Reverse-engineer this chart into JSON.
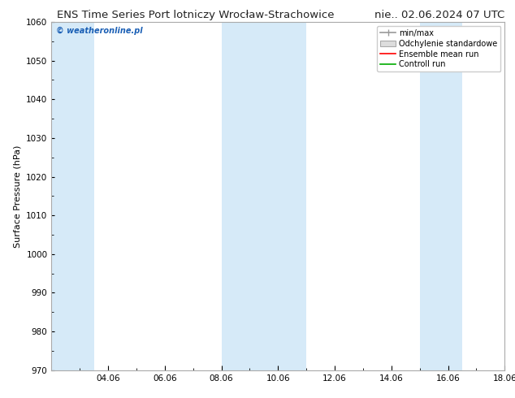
{
  "title_left": "ENS Time Series Port lotniczy Wrocław-Strachowice",
  "title_right": "nie.. 02.06.2024 07 UTC",
  "ylabel": "Surface Pressure (hPa)",
  "watermark": "© weatheronline.pl",
  "ylim": [
    970,
    1060
  ],
  "yticks": [
    970,
    980,
    990,
    1000,
    1010,
    1020,
    1030,
    1040,
    1050,
    1060
  ],
  "xlim": [
    0,
    16
  ],
  "xtick_labels": [
    "04.06",
    "06.06",
    "08.06",
    "10.06",
    "12.06",
    "14.06",
    "16.06",
    "18.06"
  ],
  "xtick_positions": [
    2,
    4,
    6,
    8,
    10,
    12,
    14,
    16
  ],
  "shaded_bands": [
    {
      "x_start": 0.0,
      "x_end": 1.5,
      "color": "#d6eaf8"
    },
    {
      "x_start": 6.0,
      "x_end": 8.0,
      "color": "#d6eaf8"
    },
    {
      "x_start": 8.0,
      "x_end": 9.0,
      "color": "#d6eaf8"
    },
    {
      "x_start": 13.0,
      "x_end": 14.5,
      "color": "#d6eaf8"
    }
  ],
  "legend_labels": [
    "min/max",
    "Odchylenie standardowe",
    "Ensemble mean run",
    "Controll run"
  ],
  "minmax_color": "#999999",
  "std_facecolor": "#dddddd",
  "std_edgecolor": "#aaaaaa",
  "ens_color": "#ff0000",
  "ctrl_color": "#00aa00",
  "background_color": "#ffffff",
  "plot_bg_color": "#ffffff",
  "spine_color": "#aaaaaa",
  "title_fontsize": 9.5,
  "ylabel_fontsize": 8,
  "tick_fontsize": 7.5,
  "legend_fontsize": 7,
  "watermark_fontsize": 7,
  "watermark_color": "#1a5fb5"
}
